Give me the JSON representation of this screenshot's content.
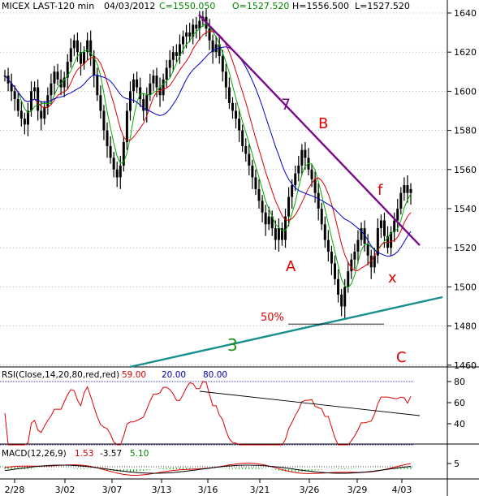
{
  "header": {
    "symbol": "MICEX LAST-120 min",
    "date": "04/03/2012",
    "close": "C=1550.050",
    "open": "O=1527.520",
    "high": "H=1556.500",
    "low": "L=1527.520"
  },
  "colors": {
    "up": "#000000",
    "down": "#000000",
    "ma_fast": "#00aa00",
    "ma_mid": "#dd0000",
    "ma_slow": "#0000cc",
    "trendline": "#7a0a8a",
    "support": "#1a8f8f",
    "labels": "#dd0000",
    "grid": "#888888"
  },
  "chart_data": [
    {
      "type": "candlestick",
      "title": "MICEX LAST-120 min",
      "ylim": [
        1450,
        1645
      ],
      "yticks": [
        "1640",
        "1620",
        "1600",
        "1580",
        "1560",
        "1540",
        "1520",
        "1500",
        "1480",
        "1460"
      ],
      "ytick_values": [
        1640,
        1620,
        1600,
        1580,
        1560,
        1540,
        1520,
        1500,
        1480,
        1460
      ],
      "xlim": [
        0,
        125
      ],
      "xticks": [
        "2/28",
        "3/02",
        "3/07",
        "3/13",
        "3/16",
        "3/21",
        "3/26",
        "3/29",
        "4/03"
      ],
      "xtick_positions": [
        6,
        26,
        43,
        60,
        76,
        92,
        109,
        125,
        141
      ],
      "series": [
        {
          "values_close": [
            1608,
            1604,
            1600,
            1596,
            1590,
            1586,
            1583,
            1590,
            1600,
            1602,
            1590,
            1586,
            1592,
            1598,
            1604,
            1610,
            1606,
            1602,
            1607,
            1615,
            1622,
            1626,
            1620,
            1614,
            1620,
            1626,
            1618,
            1608,
            1598,
            1590,
            1580,
            1572,
            1566,
            1560,
            1556,
            1562,
            1574,
            1590,
            1600,
            1606,
            1602,
            1596,
            1590,
            1598,
            1604,
            1608,
            1602,
            1598,
            1606,
            1612,
            1616,
            1620,
            1618,
            1624,
            1628,
            1630,
            1628,
            1634,
            1632,
            1636,
            1638,
            1632,
            1626,
            1620,
            1624,
            1618,
            1610,
            1602,
            1594,
            1590,
            1586,
            1580,
            1572,
            1568,
            1562,
            1556,
            1550,
            1544,
            1538,
            1532,
            1536,
            1530,
            1524,
            1530,
            1524,
            1536,
            1546,
            1552,
            1558,
            1562,
            1570,
            1566,
            1560,
            1555,
            1548,
            1540,
            1532,
            1524,
            1518,
            1512,
            1504,
            1496,
            1490,
            1500,
            1508,
            1514,
            1518,
            1524,
            1530,
            1522,
            1516,
            1510,
            1516,
            1530,
            1534,
            1526,
            1520,
            1528,
            1534,
            1540,
            1548,
            1552,
            1548,
            1550
          ]
        }
      ],
      "annotations": [
        "7",
        "B",
        "A",
        "f",
        "x",
        "50%",
        "3",
        "C"
      ],
      "support_line": {
        "from": [
          10,
          1453
        ],
        "to": [
          150,
          1494
        ]
      },
      "trendline_from_to": [
        [
          60,
          1640
        ],
        [
          140,
          1520
        ]
      ]
    },
    {
      "type": "line",
      "title": "RSI(Close,14,20,80,red,red)",
      "values_label": "59.00",
      "low_label": "20.00",
      "high_label": "80.00",
      "ylim": [
        20,
        85
      ],
      "yticks": [
        "80",
        "60",
        "40"
      ],
      "ytick_values": [
        80,
        60,
        40
      ]
    },
    {
      "type": "line",
      "title": "MACD(12,26,9)",
      "macd": "1.53",
      "signal": "-3.57",
      "hist": "5.10",
      "yticks": [
        "5"
      ]
    }
  ]
}
